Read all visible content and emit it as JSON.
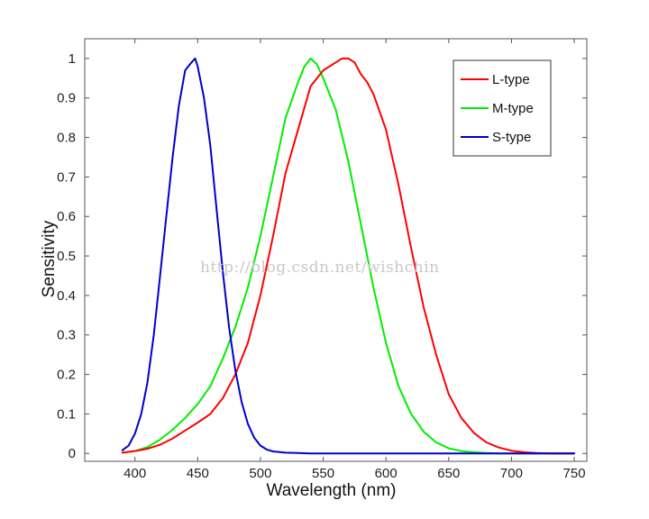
{
  "chart_data": {
    "type": "line",
    "xlabel": "Wavelength (nm)",
    "ylabel": "Sensitivity",
    "xlim": [
      360,
      760
    ],
    "ylim": [
      -0.02,
      1.05
    ],
    "xticks": [
      400,
      450,
      500,
      550,
      600,
      650,
      700,
      750
    ],
    "yticks": [
      0,
      0.1,
      0.2,
      0.3,
      0.4,
      0.5,
      0.6,
      0.7,
      0.8,
      0.9,
      1
    ],
    "ytick_labels": [
      "0",
      "0.1",
      "0.2",
      "0.3",
      "0.4",
      "0.5",
      "0.6",
      "0.7",
      "0.8",
      "0.9",
      "1"
    ],
    "grid": false,
    "legend_position": "top-right",
    "series": [
      {
        "name": "L-type",
        "color": "#ff0000",
        "x": [
          390,
          400,
          410,
          420,
          430,
          440,
          450,
          460,
          470,
          480,
          490,
          500,
          510,
          520,
          530,
          540,
          550,
          560,
          565,
          570,
          575,
          580,
          585,
          590,
          600,
          610,
          620,
          630,
          640,
          650,
          660,
          670,
          680,
          690,
          700,
          710,
          720,
          730,
          740,
          750
        ],
        "y": [
          0.002,
          0.006,
          0.012,
          0.022,
          0.038,
          0.058,
          0.078,
          0.1,
          0.14,
          0.2,
          0.28,
          0.4,
          0.55,
          0.71,
          0.82,
          0.93,
          0.97,
          0.99,
          1.0,
          1.0,
          0.99,
          0.96,
          0.94,
          0.91,
          0.82,
          0.68,
          0.52,
          0.37,
          0.25,
          0.15,
          0.09,
          0.052,
          0.028,
          0.015,
          0.007,
          0.003,
          0.001,
          0.0,
          0.0,
          0.0
        ]
      },
      {
        "name": "M-type",
        "color": "#00ee00",
        "x": [
          390,
          400,
          410,
          420,
          430,
          440,
          450,
          460,
          470,
          480,
          490,
          500,
          510,
          520,
          530,
          535,
          540,
          545,
          550,
          560,
          570,
          580,
          590,
          600,
          610,
          620,
          630,
          640,
          650,
          660,
          670,
          680,
          690,
          700,
          710,
          720,
          750
        ],
        "y": [
          0.002,
          0.006,
          0.016,
          0.035,
          0.06,
          0.09,
          0.125,
          0.17,
          0.24,
          0.32,
          0.42,
          0.55,
          0.7,
          0.85,
          0.94,
          0.98,
          1.0,
          0.985,
          0.95,
          0.87,
          0.74,
          0.58,
          0.42,
          0.28,
          0.17,
          0.1,
          0.055,
          0.028,
          0.013,
          0.006,
          0.003,
          0.001,
          0.0,
          0.0,
          0.0,
          0.0,
          0.0
        ]
      },
      {
        "name": "S-type",
        "color": "#0000cc",
        "x": [
          390,
          395,
          400,
          405,
          410,
          415,
          420,
          425,
          430,
          435,
          440,
          445,
          448,
          450,
          455,
          460,
          465,
          470,
          475,
          480,
          485,
          490,
          495,
          500,
          505,
          510,
          520,
          530,
          540,
          550,
          600,
          650,
          700,
          750
        ],
        "y": [
          0.008,
          0.02,
          0.05,
          0.1,
          0.18,
          0.3,
          0.45,
          0.6,
          0.75,
          0.88,
          0.97,
          0.99,
          1.0,
          0.98,
          0.9,
          0.78,
          0.62,
          0.46,
          0.32,
          0.21,
          0.13,
          0.075,
          0.04,
          0.02,
          0.01,
          0.005,
          0.002,
          0.001,
          0.0,
          0.0,
          0.0,
          0.0,
          0.0,
          0.0
        ]
      }
    ]
  },
  "watermark": "http://blog.csdn.net/wishchin"
}
